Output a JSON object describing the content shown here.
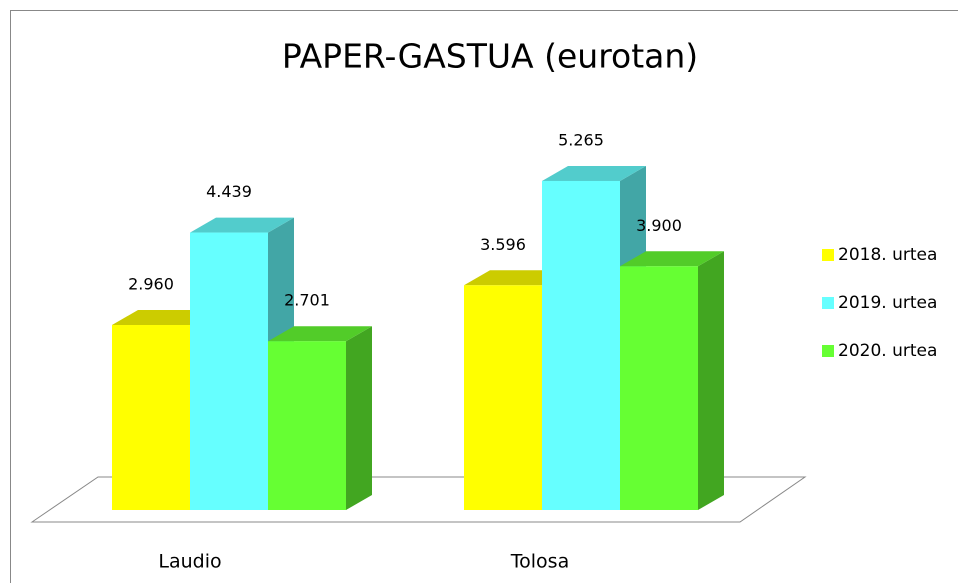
{
  "chart_data": {
    "type": "bar3d",
    "title": "PAPER-GASTUA (eurotan)",
    "categories": [
      "Laudio",
      "Tolosa"
    ],
    "series": [
      {
        "name": "2018. urtea",
        "color": "#ffff00",
        "values": [
          2960,
          3596
        ],
        "value_labels": [
          "2.960",
          "3.596"
        ]
      },
      {
        "name": "2019. urtea",
        "color": "#66ffff",
        "values": [
          4439,
          5265
        ],
        "value_labels": [
          "4.439",
          "5.265"
        ]
      },
      {
        "name": "2020. urtea",
        "color": "#66ff33",
        "values": [
          2701,
          3900
        ],
        "value_labels": [
          "2.701",
          "3.900"
        ]
      }
    ],
    "legend": "right"
  }
}
